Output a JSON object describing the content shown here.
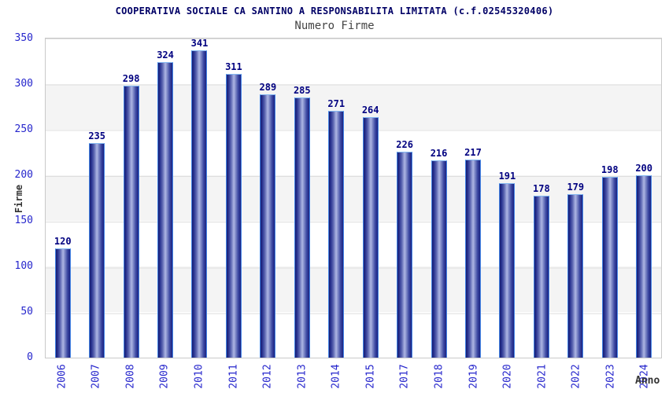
{
  "header": {
    "title": "COOPERATIVA SOCIALE CA SANTINO A RESPONSABILITA LIMITATA (c.f.02545320406)",
    "subtitle": "Numero Firme"
  },
  "axes": {
    "y_label": "Firme",
    "x_label": "Anno",
    "y_ticks": [
      0,
      50,
      100,
      150,
      200,
      250,
      300,
      350
    ]
  },
  "chart_data": {
    "type": "bar",
    "title": "Numero Firme",
    "categories": [
      "2006",
      "2007",
      "2008",
      "2009",
      "2010",
      "2011",
      "2012",
      "2013",
      "2014",
      "2015",
      "2017",
      "2018",
      "2019",
      "2020",
      "2021",
      "2022",
      "2023",
      "2024"
    ],
    "values": [
      120,
      235,
      298,
      324,
      341,
      311,
      289,
      285,
      271,
      264,
      226,
      216,
      217,
      191,
      178,
      179,
      198,
      200
    ],
    "xlabel": "Anno",
    "ylabel": "Firme",
    "ylim": [
      0,
      350
    ],
    "grid": true,
    "grid_interval": 50,
    "legend": false,
    "bar_value_labels": true
  },
  "colors": {
    "title": "#000066",
    "subtitle": "#444444",
    "axis_tick_labels": "#2626cc",
    "value_labels": "#000080",
    "bar_dark": "#1a2280",
    "bar_light": "#adb5e3",
    "bar_border": "#4585e6",
    "band_gray": "#f4f4f4",
    "gridline": "#dedede",
    "plot_border": "#c9c9c9"
  }
}
